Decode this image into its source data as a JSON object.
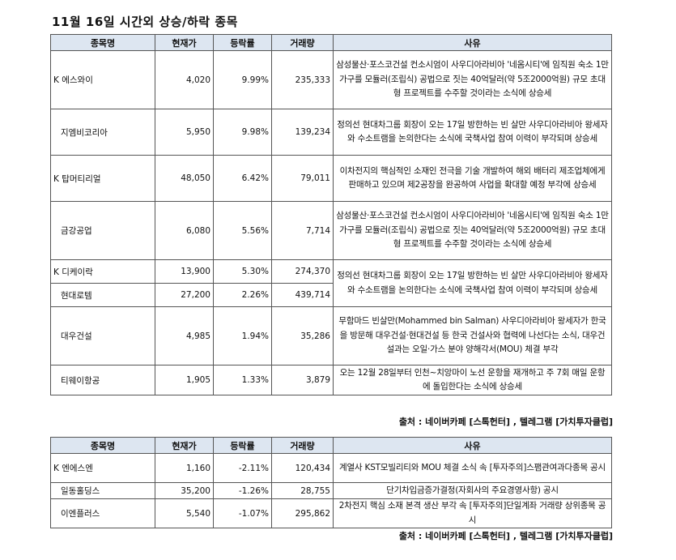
{
  "title": "11월 16일  시간외 상승/하락 종목",
  "headers": [
    "종목명",
    "현재가",
    "등락률",
    "거래량",
    "사유"
  ],
  "rise": [
    {
      "name": "K 에스와이",
      "price": "4,020",
      "rate": "9.99%",
      "volume": "235,333",
      "reason": "삼성물산·포스코건설 컨소시엄이 사우디아라비아 '네옴시티'에 임직원 숙소 1만가구를 모듈러(조립식) 공법으로 짓는 40억달러(약 5조2000억원) 규모 초대형 프로젝트를 수주할 것이라는 소식에 상승세"
    },
    {
      "name": "지엠비코리아",
      "price": "5,950",
      "rate": "9.98%",
      "volume": "139,234",
      "reason": "정의선 현대차그룹 회장이 오는 17일 방한하는 빈 살만 사우디아라비아 왕세자와 수소트램을 논의한다는 소식에 국책사업 참여 이력이 부각되며 상승세"
    },
    {
      "name": "K 탑머티리얼",
      "price": "48,050",
      "rate": "6.42%",
      "volume": "79,011",
      "reason": "이차전지의 핵심적인 소재인 전극을 기술 개발하여 해외 배터리 제조업체에게 판매하고 있으며 제2공장을 완공하여 사업을 확대할 예정 부각에 상승세"
    },
    {
      "name": "금강공업",
      "price": "6,080",
      "rate": "5.56%",
      "volume": "7,714",
      "reason": "삼성물산·포스코건설 컨소시엄이 사우디아라비아 '네옴시티'에 임직원 숙소 1만가구를 모듈러(조립식) 공법으로 짓는 40억달러(약 5조2000억원) 규모 초대형 프로젝트를 수주할 것이라는 소식에 상승세"
    },
    {
      "name": "K 디케이락",
      "price": "13,900",
      "rate": "5.30%",
      "volume": "274,370",
      "reason": "정의선 현대차그룹 회장이 오는 17일 방한하는 빈 살만 사우디아라비아 왕세자와 수소트램을 논의한다는 소식에 국책사업 참여 이력이 부각되며 상승세"
    },
    {
      "name": "현대로템",
      "price": "27,200",
      "rate": "2.26%",
      "volume": "439,714"
    },
    {
      "name": "대우건설",
      "price": "4,985",
      "rate": "1.94%",
      "volume": "35,286",
      "reason": "무함마드 빈살만(Mohammed bin Salman) 사우디아라비아 왕세자가 한국을 방문해 대우건설·현대건설 등 한국 건설사와 협력에 나선다는 소식, 대우건설과는 오일·가스 분야 양해각서(MOU) 체결 부각"
    },
    {
      "name": "티웨이항공",
      "price": "1,905",
      "rate": "1.33%",
      "volume": "3,879",
      "reason": "오는 12월 28일부터 인천~치앙마이 노선 운항을 재개하고 주 7회 매일 운항에 돌입한다는 소식에 상승세"
    }
  ],
  "source1": "출처 : 네이버카페 [스톡헌터] , 텔레그램 [가치투자클럽]",
  "fall": [
    {
      "name": "K 엔에스엔",
      "price": "1,160",
      "rate": "-2.11%",
      "volume": "120,434",
      "reason": "계열사 KST모빌리티와 MOU 체결 소식 속 [투자주의]스팸관여과다종목 공시"
    },
    {
      "name": "일동홀딩스",
      "price": "35,200",
      "rate": "-1.26%",
      "volume": "28,755",
      "reason": "단기차입금증가결정(자회사의 주요경영사항) 공시"
    },
    {
      "name": "이엔플러스",
      "price": "5,540",
      "rate": "-1.07%",
      "volume": "295,862",
      "reason": "2차전지 핵심 소재 본격 생산 부각 속  [투자주의]단일계좌 거래량 상위종목 공시"
    }
  ],
  "source2": "출처 : 네이버카페 [스톡헌터] , 텔레그램 [가치투자클럽]"
}
